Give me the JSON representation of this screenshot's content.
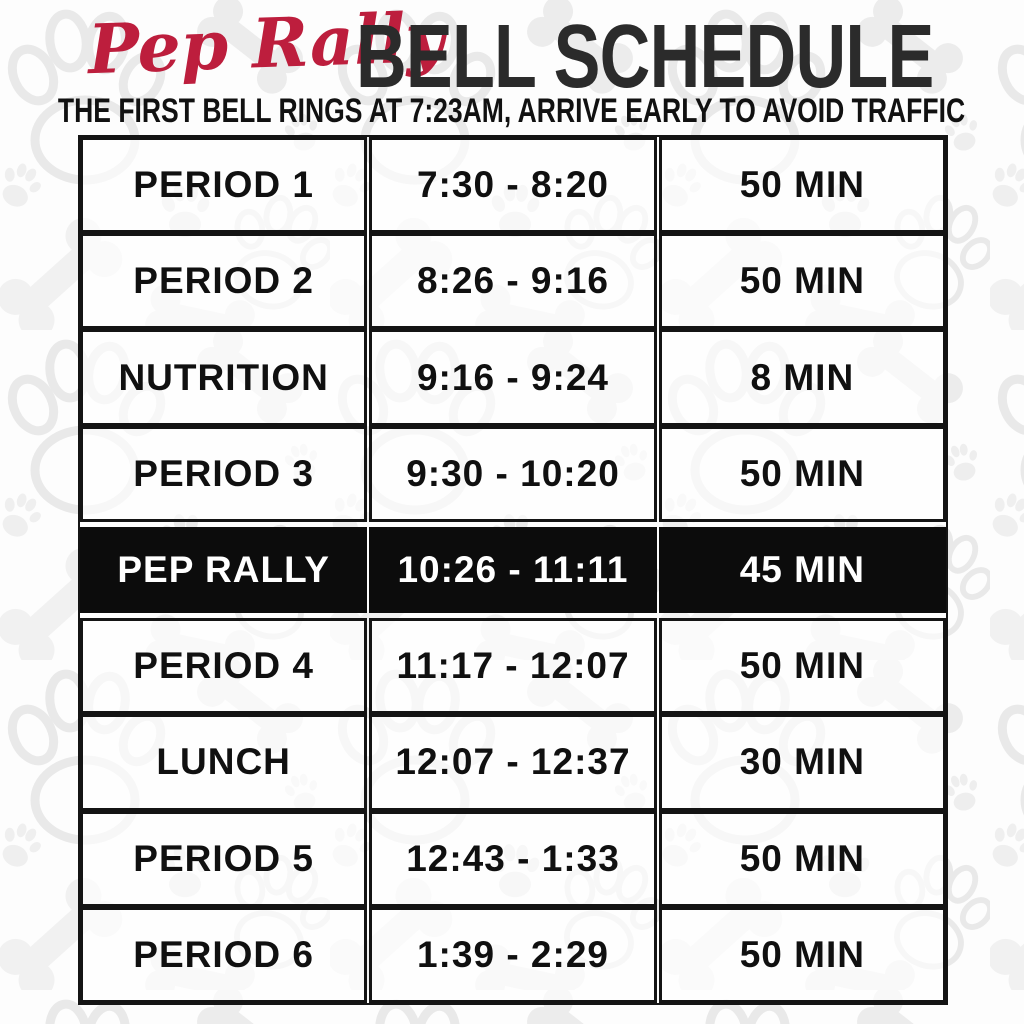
{
  "header": {
    "script_title": "Pep Rally",
    "main_title": "BELL SCHEDULE",
    "subtitle": "THE FIRST BELL RINGS AT 7:23AM, ARRIVE EARLY TO AVOID TRAFFIC"
  },
  "colors": {
    "accent_red": "#bd1e3d",
    "title_dark": "#2b2b2b",
    "highlight_bg": "#0c0c0c",
    "highlight_text": "#ffffff",
    "table_border": "#141414",
    "pattern_gray": "#e9e9e9",
    "page_bg": "#fdfdfd"
  },
  "schedule": {
    "columns": [
      "name",
      "time",
      "duration"
    ],
    "rows": [
      {
        "name": "PERIOD 1",
        "time": "7:30 - 8:20",
        "duration": "50 MIN",
        "highlight": false
      },
      {
        "name": "PERIOD 2",
        "time": "8:26 - 9:16",
        "duration": "50 MIN",
        "highlight": false
      },
      {
        "name": "NUTRITION",
        "time": "9:16 - 9:24",
        "duration": "8 MIN",
        "highlight": false
      },
      {
        "name": "PERIOD 3",
        "time": "9:30 - 10:20",
        "duration": "50 MIN",
        "highlight": false
      },
      {
        "name": "PEP RALLY",
        "time": "10:26 - 11:11",
        "duration": "45 MIN",
        "highlight": true
      },
      {
        "name": "PERIOD 4",
        "time": "11:17 - 12:07",
        "duration": "50 MIN",
        "highlight": false
      },
      {
        "name": "LUNCH",
        "time": "12:07 - 12:37",
        "duration": "30 MIN",
        "highlight": false
      },
      {
        "name": "PERIOD 5",
        "time": "12:43 - 1:33",
        "duration": "50 MIN",
        "highlight": false
      },
      {
        "name": "PERIOD 6",
        "time": "1:39 - 2:29",
        "duration": "50 MIN",
        "highlight": false
      }
    ]
  }
}
